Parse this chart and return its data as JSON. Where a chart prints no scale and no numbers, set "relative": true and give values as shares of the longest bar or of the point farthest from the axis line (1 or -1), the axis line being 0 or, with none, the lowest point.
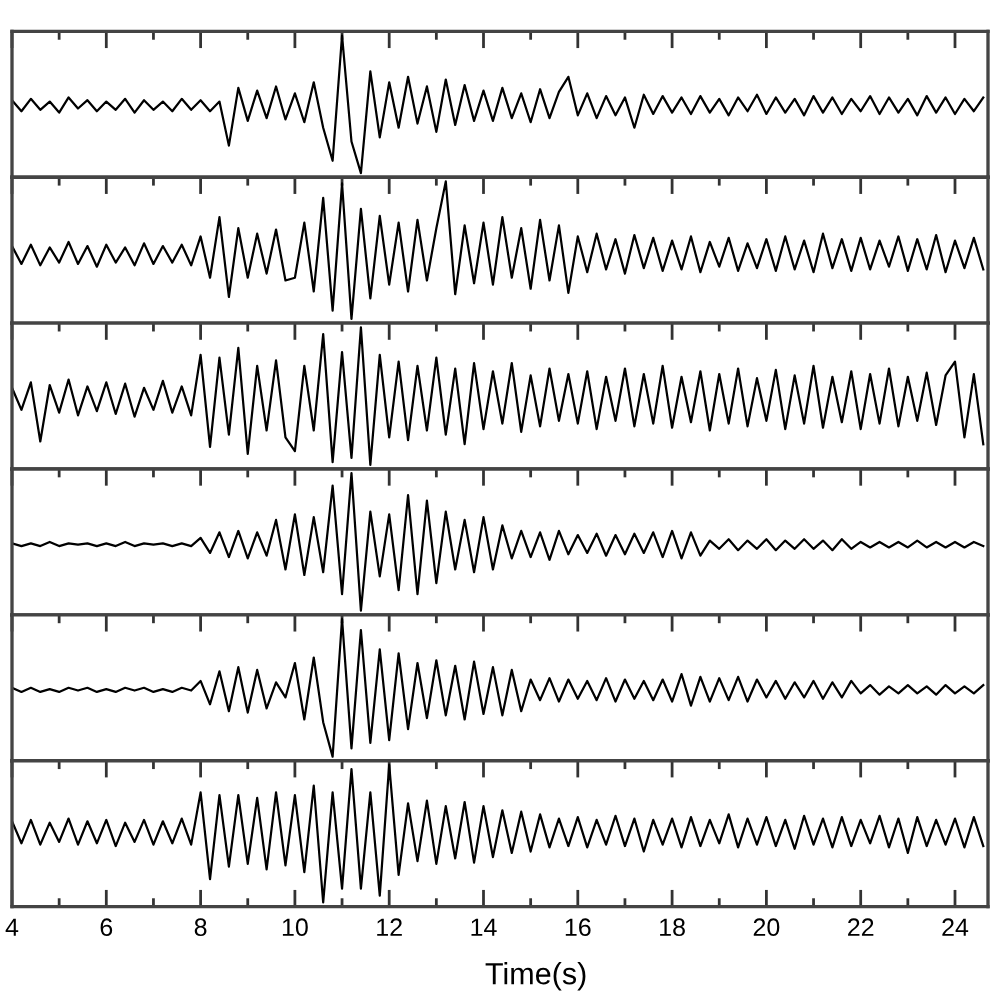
{
  "chart_data": [
    {
      "type": "line",
      "relative": true,
      "color": "#000000",
      "xlim": [
        4,
        24.7
      ],
      "tick_labels": false,
      "xticks": [
        4,
        {
          "value": 5,
          "label": null
        },
        6,
        {
          "value": 7,
          "label": null
        },
        8,
        {
          "value": 9,
          "label": null
        },
        10,
        {
          "value": 11,
          "label": null
        },
        12,
        {
          "value": 13,
          "label": null
        },
        14,
        {
          "value": 15,
          "label": null
        },
        16,
        {
          "value": 17,
          "label": null
        },
        18,
        {
          "value": 19,
          "label": null
        },
        20,
        {
          "value": 21,
          "label": null
        },
        22,
        {
          "value": 23,
          "label": null
        },
        24
      ],
      "x": [
        4,
        4.2,
        4.4,
        4.6,
        4.8,
        5,
        5.2,
        5.4,
        5.6,
        5.8,
        6,
        6.2,
        6.4,
        6.6,
        6.8,
        7,
        7.2,
        7.4,
        7.6,
        7.8,
        8,
        8.2,
        8.4,
        8.6,
        8.8,
        9,
        9.2,
        9.4,
        9.6,
        9.8,
        10,
        10.2,
        10.4,
        10.6,
        10.8,
        11,
        11.2,
        11.4,
        11.6,
        11.8,
        12,
        12.2,
        12.4,
        12.6,
        12.8,
        13,
        13.2,
        13.4,
        13.6,
        13.8,
        14,
        14.2,
        14.4,
        14.6,
        14.8,
        15,
        15.2,
        15.4,
        15.6,
        15.8,
        16,
        16.2,
        16.4,
        16.6,
        16.8,
        17,
        17.2,
        17.4,
        17.6,
        17.8,
        18,
        18.2,
        18.4,
        18.6,
        18.8,
        19,
        19.2,
        19.4,
        19.6,
        19.8,
        20,
        20.2,
        20.4,
        20.6,
        20.8,
        21,
        21.2,
        21.4,
        21.6,
        21.8,
        22,
        22.2,
        22.4,
        22.6,
        22.8,
        23,
        23.2,
        23.4,
        23.6,
        23.8,
        24,
        24.2,
        24.4,
        24.6
      ],
      "values": [
        0.53,
        0.45,
        0.54,
        0.46,
        0.52,
        0.44,
        0.55,
        0.47,
        0.53,
        0.45,
        0.52,
        0.46,
        0.54,
        0.44,
        0.53,
        0.46,
        0.52,
        0.45,
        0.54,
        0.46,
        0.53,
        0.45,
        0.52,
        0.2,
        0.62,
        0.38,
        0.6,
        0.4,
        0.63,
        0.39,
        0.58,
        0.37,
        0.66,
        0.33,
        0.09,
        1.0,
        0.23,
        0.0,
        0.74,
        0.26,
        0.66,
        0.33,
        0.7,
        0.36,
        0.63,
        0.3,
        0.68,
        0.35,
        0.64,
        0.38,
        0.6,
        0.38,
        0.62,
        0.4,
        0.58,
        0.37,
        0.61,
        0.4,
        0.59,
        0.7,
        0.42,
        0.58,
        0.4,
        0.56,
        0.42,
        0.55,
        0.33,
        0.57,
        0.43,
        0.56,
        0.44,
        0.55,
        0.43,
        0.56,
        0.44,
        0.54,
        0.42,
        0.55,
        0.45,
        0.57,
        0.43,
        0.55,
        0.44,
        0.54,
        0.42,
        0.56,
        0.44,
        0.55,
        0.43,
        0.54,
        0.45,
        0.56,
        0.43,
        0.55,
        0.44,
        0.54,
        0.42,
        0.56,
        0.44,
        0.55,
        0.43,
        0.54,
        0.45,
        0.55
      ]
    },
    {
      "type": "line",
      "relative": true,
      "color": "#000000",
      "xlim": [
        4,
        24.7
      ],
      "tick_labels": false,
      "xticks": [
        4,
        {
          "value": 5,
          "label": null
        },
        6,
        {
          "value": 7,
          "label": null
        },
        8,
        {
          "value": 9,
          "label": null
        },
        10,
        {
          "value": 11,
          "label": null
        },
        12,
        {
          "value": 13,
          "label": null
        },
        14,
        {
          "value": 15,
          "label": null
        },
        16,
        {
          "value": 17,
          "label": null
        },
        18,
        {
          "value": 19,
          "label": null
        },
        20,
        {
          "value": 21,
          "label": null
        },
        22,
        {
          "value": 23,
          "label": null
        },
        24
      ],
      "x": [
        4,
        4.2,
        4.4,
        4.6,
        4.8,
        5,
        5.2,
        5.4,
        5.6,
        5.8,
        6,
        6.2,
        6.4,
        6.6,
        6.8,
        7,
        7.2,
        7.4,
        7.6,
        7.8,
        8,
        8.2,
        8.4,
        8.6,
        8.8,
        9,
        9.2,
        9.4,
        9.6,
        9.8,
        10,
        10.2,
        10.4,
        10.6,
        10.8,
        11,
        11.2,
        11.4,
        11.6,
        11.8,
        12,
        12.2,
        12.4,
        12.6,
        12.8,
        13,
        13.2,
        13.4,
        13.6,
        13.8,
        14,
        14.2,
        14.4,
        14.6,
        14.8,
        15,
        15.2,
        15.4,
        15.6,
        15.8,
        16,
        16.2,
        16.4,
        16.6,
        16.8,
        17,
        17.2,
        17.4,
        17.6,
        17.8,
        18,
        18.2,
        18.4,
        18.6,
        18.8,
        19,
        19.2,
        19.4,
        19.6,
        19.8,
        20,
        20.2,
        20.4,
        20.6,
        20.8,
        21,
        21.2,
        21.4,
        21.6,
        21.8,
        22,
        22.2,
        22.4,
        22.6,
        22.8,
        23,
        23.2,
        23.4,
        23.6,
        23.8,
        24,
        24.2,
        24.4,
        24.6
      ],
      "values": [
        0.53,
        0.4,
        0.54,
        0.39,
        0.52,
        0.41,
        0.56,
        0.4,
        0.53,
        0.38,
        0.54,
        0.41,
        0.52,
        0.39,
        0.55,
        0.4,
        0.53,
        0.41,
        0.54,
        0.39,
        0.6,
        0.3,
        0.74,
        0.16,
        0.66,
        0.3,
        0.62,
        0.33,
        0.65,
        0.28,
        0.3,
        0.7,
        0.2,
        0.88,
        0.06,
        0.985,
        0.0,
        0.8,
        0.15,
        0.75,
        0.25,
        0.7,
        0.2,
        0.72,
        0.28,
        0.66,
        1.0,
        0.18,
        0.68,
        0.26,
        0.7,
        0.25,
        0.74,
        0.3,
        0.66,
        0.22,
        0.72,
        0.28,
        0.68,
        0.19,
        0.6,
        0.34,
        0.62,
        0.36,
        0.58,
        0.33,
        0.61,
        0.37,
        0.59,
        0.35,
        0.57,
        0.36,
        0.6,
        0.34,
        0.56,
        0.38,
        0.59,
        0.35,
        0.55,
        0.37,
        0.58,
        0.35,
        0.6,
        0.36,
        0.57,
        0.34,
        0.62,
        0.37,
        0.58,
        0.35,
        0.59,
        0.36,
        0.57,
        0.38,
        0.6,
        0.35,
        0.58,
        0.36,
        0.61,
        0.34,
        0.57,
        0.37,
        0.59,
        0.36
      ]
    },
    {
      "type": "line",
      "relative": true,
      "color": "#000000",
      "xlim": [
        4,
        24.7
      ],
      "tick_labels": false,
      "xticks": [
        4,
        {
          "value": 5,
          "label": null
        },
        6,
        {
          "value": 7,
          "label": null
        },
        8,
        {
          "value": 9,
          "label": null
        },
        10,
        {
          "value": 11,
          "label": null
        },
        12,
        {
          "value": 13,
          "label": null
        },
        14,
        {
          "value": 15,
          "label": null
        },
        16,
        {
          "value": 17,
          "label": null
        },
        18,
        {
          "value": 19,
          "label": null
        },
        20,
        {
          "value": 21,
          "label": null
        },
        22,
        {
          "value": 23,
          "label": null
        },
        24
      ],
      "x": [
        4,
        4.2,
        4.4,
        4.6,
        4.8,
        5,
        5.2,
        5.4,
        5.6,
        5.8,
        6,
        6.2,
        6.4,
        6.6,
        6.8,
        7,
        7.2,
        7.4,
        7.6,
        7.8,
        8,
        8.2,
        8.4,
        8.6,
        8.8,
        9,
        9.2,
        9.4,
        9.6,
        9.8,
        10,
        10.2,
        10.4,
        10.6,
        10.8,
        11,
        11.2,
        11.4,
        11.6,
        11.8,
        12,
        12.2,
        12.4,
        12.6,
        12.8,
        13,
        13.2,
        13.4,
        13.6,
        13.8,
        14,
        14.2,
        14.4,
        14.6,
        14.8,
        15,
        15.2,
        15.4,
        15.6,
        15.8,
        16,
        16.2,
        16.4,
        16.6,
        16.8,
        17,
        17.2,
        17.4,
        17.6,
        17.8,
        18,
        18.2,
        18.4,
        18.6,
        18.8,
        19,
        19.2,
        19.4,
        19.6,
        19.8,
        20,
        20.2,
        20.4,
        20.6,
        20.8,
        21,
        21.2,
        21.4,
        21.6,
        21.8,
        22,
        22.2,
        22.4,
        22.6,
        22.8,
        23,
        23.2,
        23.4,
        23.6,
        23.8,
        24,
        24.2,
        24.4,
        24.6
      ],
      "values": [
        0.56,
        0.4,
        0.6,
        0.17,
        0.58,
        0.38,
        0.62,
        0.36,
        0.57,
        0.39,
        0.6,
        0.37,
        0.59,
        0.35,
        0.56,
        0.4,
        0.61,
        0.38,
        0.57,
        0.36,
        0.8,
        0.13,
        0.78,
        0.22,
        0.85,
        0.08,
        0.72,
        0.25,
        0.76,
        0.2,
        0.1,
        0.72,
        0.25,
        0.95,
        0.02,
        0.82,
        0.05,
        1.0,
        0.0,
        0.8,
        0.2,
        0.75,
        0.18,
        0.72,
        0.25,
        0.78,
        0.22,
        0.7,
        0.15,
        0.74,
        0.26,
        0.68,
        0.3,
        0.74,
        0.24,
        0.65,
        0.28,
        0.7,
        0.32,
        0.66,
        0.3,
        0.68,
        0.26,
        0.64,
        0.32,
        0.7,
        0.28,
        0.66,
        0.3,
        0.72,
        0.27,
        0.64,
        0.31,
        0.68,
        0.25,
        0.66,
        0.3,
        0.7,
        0.28,
        0.63,
        0.32,
        0.69,
        0.26,
        0.65,
        0.3,
        0.72,
        0.27,
        0.64,
        0.31,
        0.68,
        0.26,
        0.66,
        0.3,
        0.7,
        0.28,
        0.64,
        0.32,
        0.67,
        0.29,
        0.65,
        0.75,
        0.2,
        0.66,
        0.15
      ]
    },
    {
      "type": "line",
      "relative": true,
      "color": "#000000",
      "xlim": [
        4,
        24.7
      ],
      "tick_labels": false,
      "xticks": [
        4,
        {
          "value": 5,
          "label": null
        },
        6,
        {
          "value": 7,
          "label": null
        },
        8,
        {
          "value": 9,
          "label": null
        },
        10,
        {
          "value": 11,
          "label": null
        },
        12,
        {
          "value": 13,
          "label": null
        },
        14,
        {
          "value": 15,
          "label": null
        },
        16,
        {
          "value": 17,
          "label": null
        },
        18,
        {
          "value": 19,
          "label": null
        },
        20,
        {
          "value": 21,
          "label": null
        },
        22,
        {
          "value": 23,
          "label": null
        },
        24
      ],
      "x": [
        4,
        4.2,
        4.4,
        4.6,
        4.8,
        5,
        5.2,
        5.4,
        5.6,
        5.8,
        6,
        6.2,
        6.4,
        6.6,
        6.8,
        7,
        7.2,
        7.4,
        7.6,
        7.8,
        8,
        8.2,
        8.4,
        8.6,
        8.8,
        9,
        9.2,
        9.4,
        9.6,
        9.8,
        10,
        10.2,
        10.4,
        10.6,
        10.8,
        11,
        11.2,
        11.4,
        11.6,
        11.8,
        12,
        12.2,
        12.4,
        12.6,
        12.8,
        13,
        13.2,
        13.4,
        13.6,
        13.8,
        14,
        14.2,
        14.4,
        14.6,
        14.8,
        15,
        15.2,
        15.4,
        15.6,
        15.8,
        16,
        16.2,
        16.4,
        16.6,
        16.8,
        17,
        17.2,
        17.4,
        17.6,
        17.8,
        18,
        18.2,
        18.4,
        18.6,
        18.8,
        19,
        19.2,
        19.4,
        19.6,
        19.8,
        20,
        20.2,
        20.4,
        20.6,
        20.8,
        21,
        21.2,
        21.4,
        21.6,
        21.8,
        22,
        22.2,
        22.4,
        22.6,
        22.8,
        23,
        23.2,
        23.4,
        23.6,
        23.8,
        24,
        24.2,
        24.4,
        24.6
      ],
      "values": [
        0.49,
        0.47,
        0.49,
        0.47,
        0.5,
        0.47,
        0.49,
        0.48,
        0.49,
        0.47,
        0.49,
        0.47,
        0.5,
        0.47,
        0.49,
        0.48,
        0.49,
        0.47,
        0.49,
        0.47,
        0.53,
        0.42,
        0.57,
        0.39,
        0.58,
        0.38,
        0.57,
        0.4,
        0.66,
        0.3,
        0.7,
        0.26,
        0.68,
        0.28,
        0.91,
        0.12,
        1.0,
        0.0,
        0.72,
        0.25,
        0.7,
        0.15,
        0.84,
        0.12,
        0.8,
        0.2,
        0.72,
        0.3,
        0.66,
        0.28,
        0.68,
        0.3,
        0.62,
        0.38,
        0.58,
        0.39,
        0.57,
        0.37,
        0.58,
        0.41,
        0.55,
        0.42,
        0.56,
        0.4,
        0.55,
        0.41,
        0.56,
        0.42,
        0.57,
        0.39,
        0.58,
        0.38,
        0.57,
        0.4,
        0.51,
        0.45,
        0.52,
        0.44,
        0.51,
        0.45,
        0.52,
        0.44,
        0.51,
        0.45,
        0.52,
        0.45,
        0.51,
        0.44,
        0.52,
        0.45,
        0.5,
        0.46,
        0.5,
        0.46,
        0.5,
        0.46,
        0.51,
        0.46,
        0.5,
        0.46,
        0.5,
        0.46,
        0.5,
        0.47
      ]
    },
    {
      "type": "line",
      "relative": true,
      "color": "#000000",
      "xlim": [
        4,
        24.7
      ],
      "tick_labels": false,
      "xticks": [
        4,
        {
          "value": 5,
          "label": null
        },
        6,
        {
          "value": 7,
          "label": null
        },
        8,
        {
          "value": 9,
          "label": null
        },
        10,
        {
          "value": 11,
          "label": null
        },
        12,
        {
          "value": 13,
          "label": null
        },
        14,
        {
          "value": 15,
          "label": null
        },
        16,
        {
          "value": 17,
          "label": null
        },
        18,
        {
          "value": 19,
          "label": null
        },
        20,
        {
          "value": 21,
          "label": null
        },
        22,
        {
          "value": 23,
          "label": null
        },
        24
      ],
      "x": [
        4,
        4.2,
        4.4,
        4.6,
        4.8,
        5,
        5.2,
        5.4,
        5.6,
        5.8,
        6,
        6.2,
        6.4,
        6.6,
        6.8,
        7,
        7.2,
        7.4,
        7.6,
        7.8,
        8,
        8.2,
        8.4,
        8.6,
        8.8,
        9,
        9.2,
        9.4,
        9.6,
        9.8,
        10,
        10.2,
        10.4,
        10.6,
        10.8,
        11,
        11.2,
        11.4,
        11.6,
        11.8,
        12,
        12.2,
        12.4,
        12.6,
        12.8,
        13,
        13.2,
        13.4,
        13.6,
        13.8,
        14,
        14.2,
        14.4,
        14.6,
        14.8,
        15,
        15.2,
        15.4,
        15.6,
        15.8,
        16,
        16.2,
        16.4,
        16.6,
        16.8,
        17,
        17.2,
        17.4,
        17.6,
        17.8,
        18,
        18.2,
        18.4,
        18.6,
        18.8,
        19,
        19.2,
        19.4,
        19.6,
        19.8,
        20,
        20.2,
        20.4,
        20.6,
        20.8,
        21,
        21.2,
        21.4,
        21.6,
        21.8,
        22,
        22.2,
        22.4,
        22.6,
        22.8,
        23,
        23.2,
        23.4,
        23.6,
        23.8,
        24,
        24.2,
        24.4,
        24.6
      ],
      "values": [
        0.5,
        0.47,
        0.5,
        0.47,
        0.49,
        0.47,
        0.5,
        0.48,
        0.5,
        0.47,
        0.49,
        0.47,
        0.5,
        0.48,
        0.5,
        0.47,
        0.49,
        0.47,
        0.5,
        0.48,
        0.55,
        0.38,
        0.62,
        0.33,
        0.65,
        0.32,
        0.63,
        0.35,
        0.54,
        0.43,
        0.68,
        0.27,
        0.72,
        0.25,
        0.0,
        1.0,
        0.06,
        0.92,
        0.1,
        0.78,
        0.12,
        0.75,
        0.2,
        0.68,
        0.28,
        0.7,
        0.3,
        0.66,
        0.27,
        0.69,
        0.31,
        0.65,
        0.3,
        0.63,
        0.33,
        0.56,
        0.41,
        0.57,
        0.4,
        0.56,
        0.42,
        0.55,
        0.41,
        0.57,
        0.4,
        0.56,
        0.42,
        0.55,
        0.41,
        0.56,
        0.4,
        0.6,
        0.37,
        0.58,
        0.4,
        0.57,
        0.41,
        0.58,
        0.4,
        0.56,
        0.43,
        0.55,
        0.42,
        0.54,
        0.43,
        0.55,
        0.42,
        0.54,
        0.43,
        0.55,
        0.46,
        0.52,
        0.45,
        0.51,
        0.46,
        0.52,
        0.46,
        0.51,
        0.45,
        0.52,
        0.46,
        0.51,
        0.46,
        0.52
      ]
    },
    {
      "type": "line",
      "relative": true,
      "color": "#000000",
      "xlim": [
        4,
        24.7
      ],
      "tick_labels": "x",
      "xlabel": "Time(s)",
      "xticks": [
        4,
        {
          "value": 5,
          "label": null
        },
        6,
        {
          "value": 7,
          "label": null
        },
        8,
        {
          "value": 9,
          "label": null
        },
        10,
        {
          "value": 11,
          "label": null
        },
        12,
        {
          "value": 13,
          "label": null
        },
        14,
        {
          "value": 15,
          "label": null
        },
        16,
        {
          "value": 17,
          "label": null
        },
        18,
        {
          "value": 19,
          "label": null
        },
        20,
        {
          "value": 21,
          "label": null
        },
        22,
        {
          "value": 23,
          "label": null
        },
        24
      ],
      "x": [
        4,
        4.2,
        4.4,
        4.6,
        4.8,
        5,
        5.2,
        5.4,
        5.6,
        5.8,
        6,
        6.2,
        6.4,
        6.6,
        6.8,
        7,
        7.2,
        7.4,
        7.6,
        7.8,
        8,
        8.2,
        8.4,
        8.6,
        8.8,
        9,
        9.2,
        9.4,
        9.6,
        9.8,
        10,
        10.2,
        10.4,
        10.6,
        10.8,
        11,
        11.2,
        11.4,
        11.6,
        11.8,
        12,
        12.2,
        12.4,
        12.6,
        12.8,
        13,
        13.2,
        13.4,
        13.6,
        13.8,
        14,
        14.2,
        14.4,
        14.6,
        14.8,
        15,
        15.2,
        15.4,
        15.6,
        15.8,
        16,
        16.2,
        16.4,
        16.6,
        16.8,
        17,
        17.2,
        17.4,
        17.6,
        17.8,
        18,
        18.2,
        18.4,
        18.6,
        18.8,
        19,
        19.2,
        19.4,
        19.6,
        19.8,
        20,
        20.2,
        20.4,
        20.6,
        20.8,
        21,
        21.2,
        21.4,
        21.6,
        21.8,
        22,
        22.2,
        22.4,
        22.6,
        22.8,
        23,
        23.2,
        23.4,
        23.6,
        23.8,
        24,
        24.2,
        24.4,
        24.6
      ],
      "values": [
        0.59,
        0.43,
        0.6,
        0.42,
        0.58,
        0.44,
        0.61,
        0.42,
        0.59,
        0.43,
        0.6,
        0.41,
        0.58,
        0.44,
        0.6,
        0.42,
        0.59,
        0.43,
        0.61,
        0.42,
        0.8,
        0.17,
        0.78,
        0.26,
        0.78,
        0.28,
        0.76,
        0.24,
        0.8,
        0.27,
        0.78,
        0.22,
        0.85,
        0.0,
        0.8,
        0.1,
        0.97,
        0.1,
        0.8,
        0.05,
        1.0,
        0.2,
        0.72,
        0.3,
        0.74,
        0.28,
        0.7,
        0.32,
        0.73,
        0.29,
        0.7,
        0.33,
        0.67,
        0.36,
        0.66,
        0.37,
        0.64,
        0.4,
        0.61,
        0.41,
        0.62,
        0.4,
        0.6,
        0.42,
        0.63,
        0.41,
        0.61,
        0.37,
        0.6,
        0.42,
        0.61,
        0.4,
        0.62,
        0.41,
        0.6,
        0.43,
        0.64,
        0.4,
        0.61,
        0.42,
        0.62,
        0.41,
        0.6,
        0.39,
        0.63,
        0.42,
        0.61,
        0.4,
        0.62,
        0.41,
        0.6,
        0.43,
        0.63,
        0.4,
        0.61,
        0.36,
        0.62,
        0.41,
        0.6,
        0.42,
        0.61,
        0.4,
        0.62,
        0.41
      ]
    }
  ]
}
